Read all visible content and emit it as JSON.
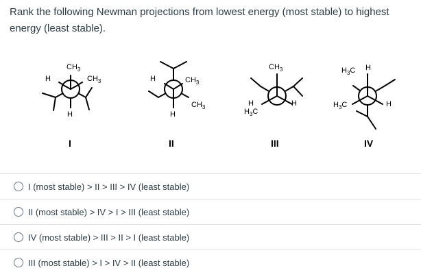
{
  "question": {
    "text": "Rank the following Newman projections from lowest energy (most stable) to highest energy (least stable)."
  },
  "figure": {
    "labels": [
      "I",
      "II",
      "III",
      "IV"
    ],
    "atoms": {
      "ch3": "CH",
      "h3c": "H",
      "three": "3",
      "c": "C",
      "h": "H"
    }
  },
  "options": [
    {
      "text": "I (most stable) > II > III > IV (least stable)"
    },
    {
      "text": "II (most stable) > IV > I > III (least stable)"
    },
    {
      "text": "IV (most stable) > III > II > I (least stable)"
    },
    {
      "text": "III (most stable) > I > IV > II (least stable)"
    }
  ]
}
